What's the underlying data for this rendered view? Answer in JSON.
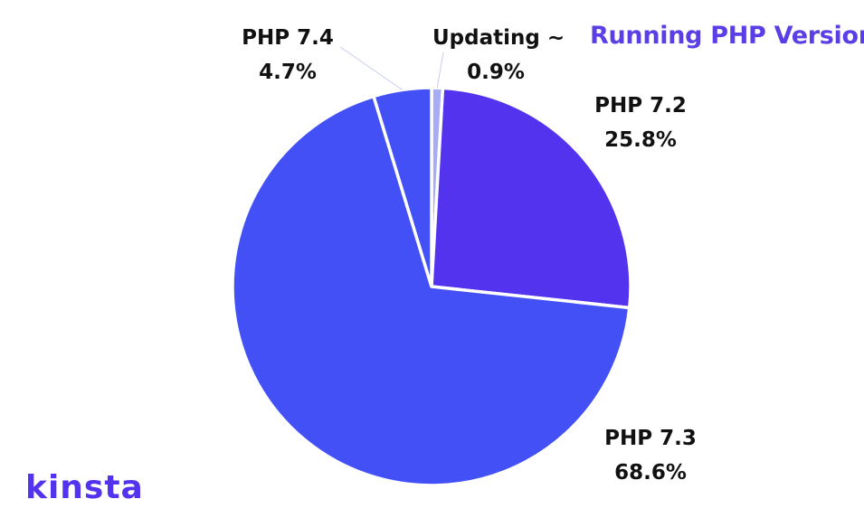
{
  "chart_data": {
    "type": "pie",
    "title": "Running PHP Version",
    "slices": [
      {
        "label": "Updating ~",
        "value": 0.9,
        "value_label": "0.9%",
        "color": "#a7adf5"
      },
      {
        "label": "PHP 7.2",
        "value": 25.8,
        "value_label": "25.8%",
        "color": "#5333ed"
      },
      {
        "label": "PHP 7.3",
        "value": 68.6,
        "value_label": "68.6%",
        "color": "#4250f5"
      },
      {
        "label": "PHP 7.4",
        "value": 4.7,
        "value_label": "4.7%",
        "color": "#4250f5"
      }
    ],
    "start_angle_deg": 0,
    "direction": "clockwise",
    "legend": "none"
  },
  "brand": {
    "logo_text": "kinsta",
    "color": "#5333ed"
  },
  "colors": {
    "title": "#5b3fe6",
    "label_text": "#111111",
    "leader_line": "#c8ccf2",
    "slice_border": "#ffffff"
  }
}
